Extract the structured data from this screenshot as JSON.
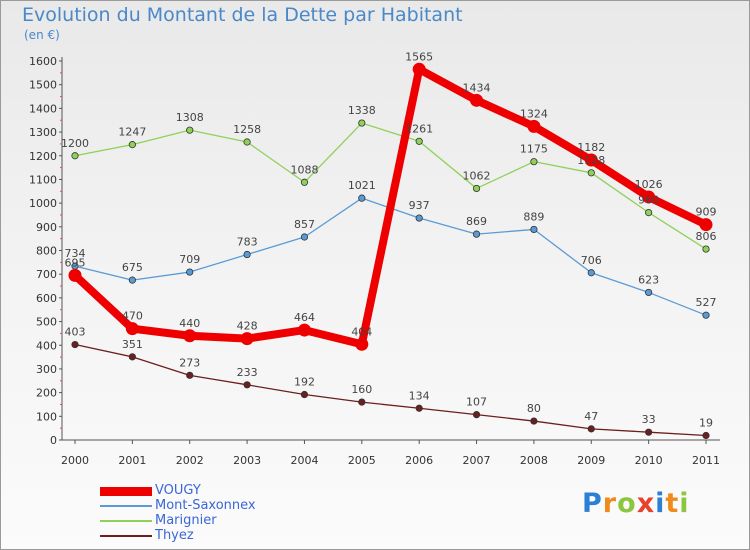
{
  "chart_data": {
    "type": "line",
    "title": "Evolution du Montant de la Dette par Habitant",
    "subtitle": "(en €)",
    "x": [
      2000,
      2001,
      2002,
      2003,
      2004,
      2005,
      2006,
      2007,
      2008,
      2009,
      2010,
      2011
    ],
    "ylim": [
      0,
      1600
    ],
    "yticks": [
      0,
      100,
      200,
      300,
      400,
      500,
      600,
      700,
      800,
      900,
      1000,
      1100,
      1200,
      1300,
      1400,
      1500,
      1600
    ],
    "grid": false,
    "legend_placement": "bottom-left",
    "series": [
      {
        "name": "VOUGY",
        "color": "#ee0000",
        "values": [
          695,
          470,
          440,
          428,
          464,
          404,
          1565,
          1434,
          1324,
          1182,
          1026,
          909
        ]
      },
      {
        "name": "Mont-Saxonnex",
        "color": "#5b9bd5",
        "values": [
          734,
          675,
          709,
          783,
          857,
          1021,
          937,
          869,
          889,
          706,
          623,
          527
        ]
      },
      {
        "name": "Marignier",
        "color": "#8fd158",
        "values": [
          1200,
          1247,
          1308,
          1258,
          1088,
          1338,
          1261,
          1062,
          1175,
          1128,
          960,
          806
        ]
      },
      {
        "name": "Thyez",
        "color": "#6b1f1f",
        "values": [
          403,
          351,
          273,
          233,
          192,
          160,
          134,
          107,
          80,
          47,
          33,
          19
        ]
      }
    ]
  },
  "logo": {
    "text": "Proxiti",
    "letters": [
      {
        "ch": "P",
        "color": "#2b7fd4"
      },
      {
        "ch": "r",
        "color": "#f08a1c"
      },
      {
        "ch": "o",
        "color": "#8cc63e"
      },
      {
        "ch": "x",
        "color": "#e8412c"
      },
      {
        "ch": "i",
        "color": "#2b7fd4"
      },
      {
        "ch": "t",
        "color": "#f08a1c"
      },
      {
        "ch": "i",
        "color": "#8cc63e"
      }
    ]
  }
}
